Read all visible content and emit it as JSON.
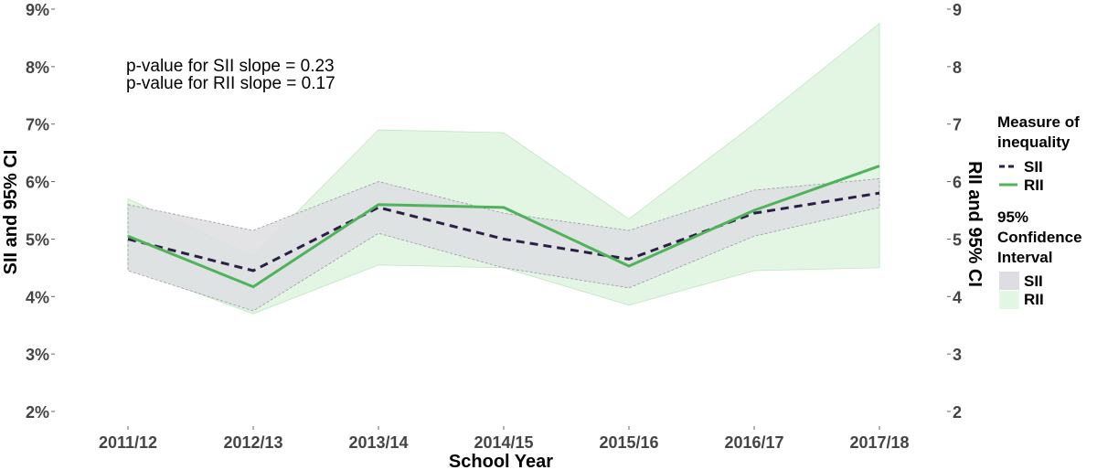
{
  "chart_data": {
    "type": "line",
    "categories": [
      "2011/12",
      "2012/13",
      "2013/14",
      "2014/15",
      "2015/16",
      "2016/17",
      "2017/18"
    ],
    "xlabel": "School Year",
    "ylabel_left": "SII and 95% CI",
    "ylabel_right": "RII and 95% CI",
    "left_axis": {
      "ylim": [
        2,
        9
      ],
      "ticks": [
        2,
        3,
        4,
        5,
        6,
        7,
        8,
        9
      ],
      "tick_suffix": "%"
    },
    "right_axis": {
      "ylim": [
        2,
        9
      ],
      "ticks": [
        2,
        3,
        4,
        5,
        6,
        7,
        8,
        9
      ]
    },
    "annotations": [
      "p-value for SII slope = 0.23",
      "p-value for RII slope = 0.17"
    ],
    "series": [
      {
        "name": "SII",
        "axis": "left",
        "style": "dashed",
        "color": "#2b1f47",
        "values": [
          5.0,
          4.45,
          5.55,
          5.0,
          4.65,
          5.45,
          5.8
        ],
        "ci_lower": [
          4.45,
          3.75,
          5.1,
          4.5,
          4.15,
          5.05,
          5.55
        ],
        "ci_upper": [
          5.6,
          5.15,
          6.0,
          5.45,
          5.15,
          5.85,
          6.05
        ],
        "ci_color": "#dedee2"
      },
      {
        "name": "RII",
        "axis": "right",
        "style": "solid",
        "color": "#4fb35a",
        "values": [
          5.05,
          4.17,
          5.6,
          5.55,
          4.53,
          5.5,
          6.27
        ],
        "ci_lower": [
          4.5,
          3.7,
          4.55,
          4.5,
          3.85,
          4.45,
          4.5
        ],
        "ci_upper": [
          5.7,
          4.7,
          6.9,
          6.85,
          5.35,
          7.0,
          8.75
        ],
        "ci_color": "#e3f5e3"
      }
    ],
    "legend": {
      "placement": "right",
      "line_title": "Measure of inequality",
      "line_title_lines": [
        "Measure of",
        "inequality"
      ],
      "line_items": [
        "SII",
        "RII"
      ],
      "ci_title": "95% Confidence Interval",
      "ci_title_lines": [
        "95%",
        "Confidence",
        "Interval"
      ],
      "ci_items": [
        "SII",
        "RII"
      ]
    },
    "grid": false
  }
}
